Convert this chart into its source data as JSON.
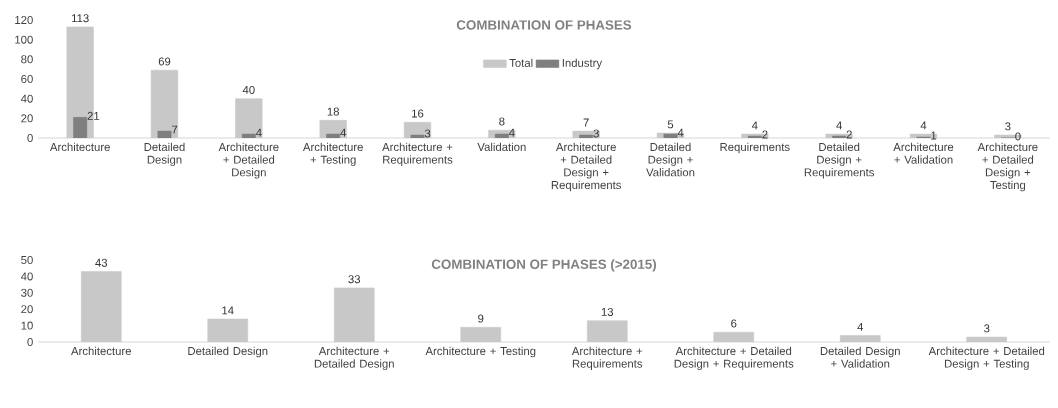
{
  "chart_data": [
    {
      "type": "bar",
      "title": "COMBINATION OF PHASES",
      "categories": [
        "Architecture",
        "Detailed Design",
        "Architecture + Detailed Design",
        "Architecture + Testing",
        "Architecture + Requirements",
        "Validation",
        "Architecture + Detailed Design + Requirements",
        "Detailed Design + Validation",
        "Requirements",
        "Detailed Design + Requirements",
        "Architecture + Validation",
        "Architecture + Detailed Design + Testing"
      ],
      "series": [
        {
          "name": "Total",
          "color": "#c8c8c8",
          "values": [
            113,
            69,
            40,
            18,
            16,
            8,
            7,
            5,
            4,
            4,
            4,
            3
          ]
        },
        {
          "name": "Industry",
          "color": "#7f7f7f",
          "values": [
            21,
            7,
            4,
            4,
            3,
            4,
            3,
            4,
            2,
            2,
            1,
            0
          ]
        }
      ],
      "ylim": [
        0,
        120
      ],
      "yticks": [
        0,
        20,
        40,
        60,
        80,
        100,
        120
      ],
      "legend": "top",
      "data_labels": true,
      "grid": false
    },
    {
      "type": "bar",
      "title": "COMBINATION OF PHASES (>2015)",
      "categories": [
        "Architecture",
        "Detailed Design",
        "Architecture + Detailed Design",
        "Architecture + Testing",
        "Architecture + Requirements",
        "Architecture + Detailed Design + Requirements",
        "Detailed Design + Validation",
        "Architecture + Detailed Design + Testing"
      ],
      "series": [
        {
          "color": "#c8c8c8",
          "values": [
            43,
            14,
            33,
            9,
            13,
            6,
            4,
            3
          ]
        }
      ],
      "ylim": [
        0,
        50
      ],
      "yticks": [
        0,
        10,
        20,
        30,
        40,
        50
      ],
      "data_labels": true,
      "grid": false
    }
  ]
}
